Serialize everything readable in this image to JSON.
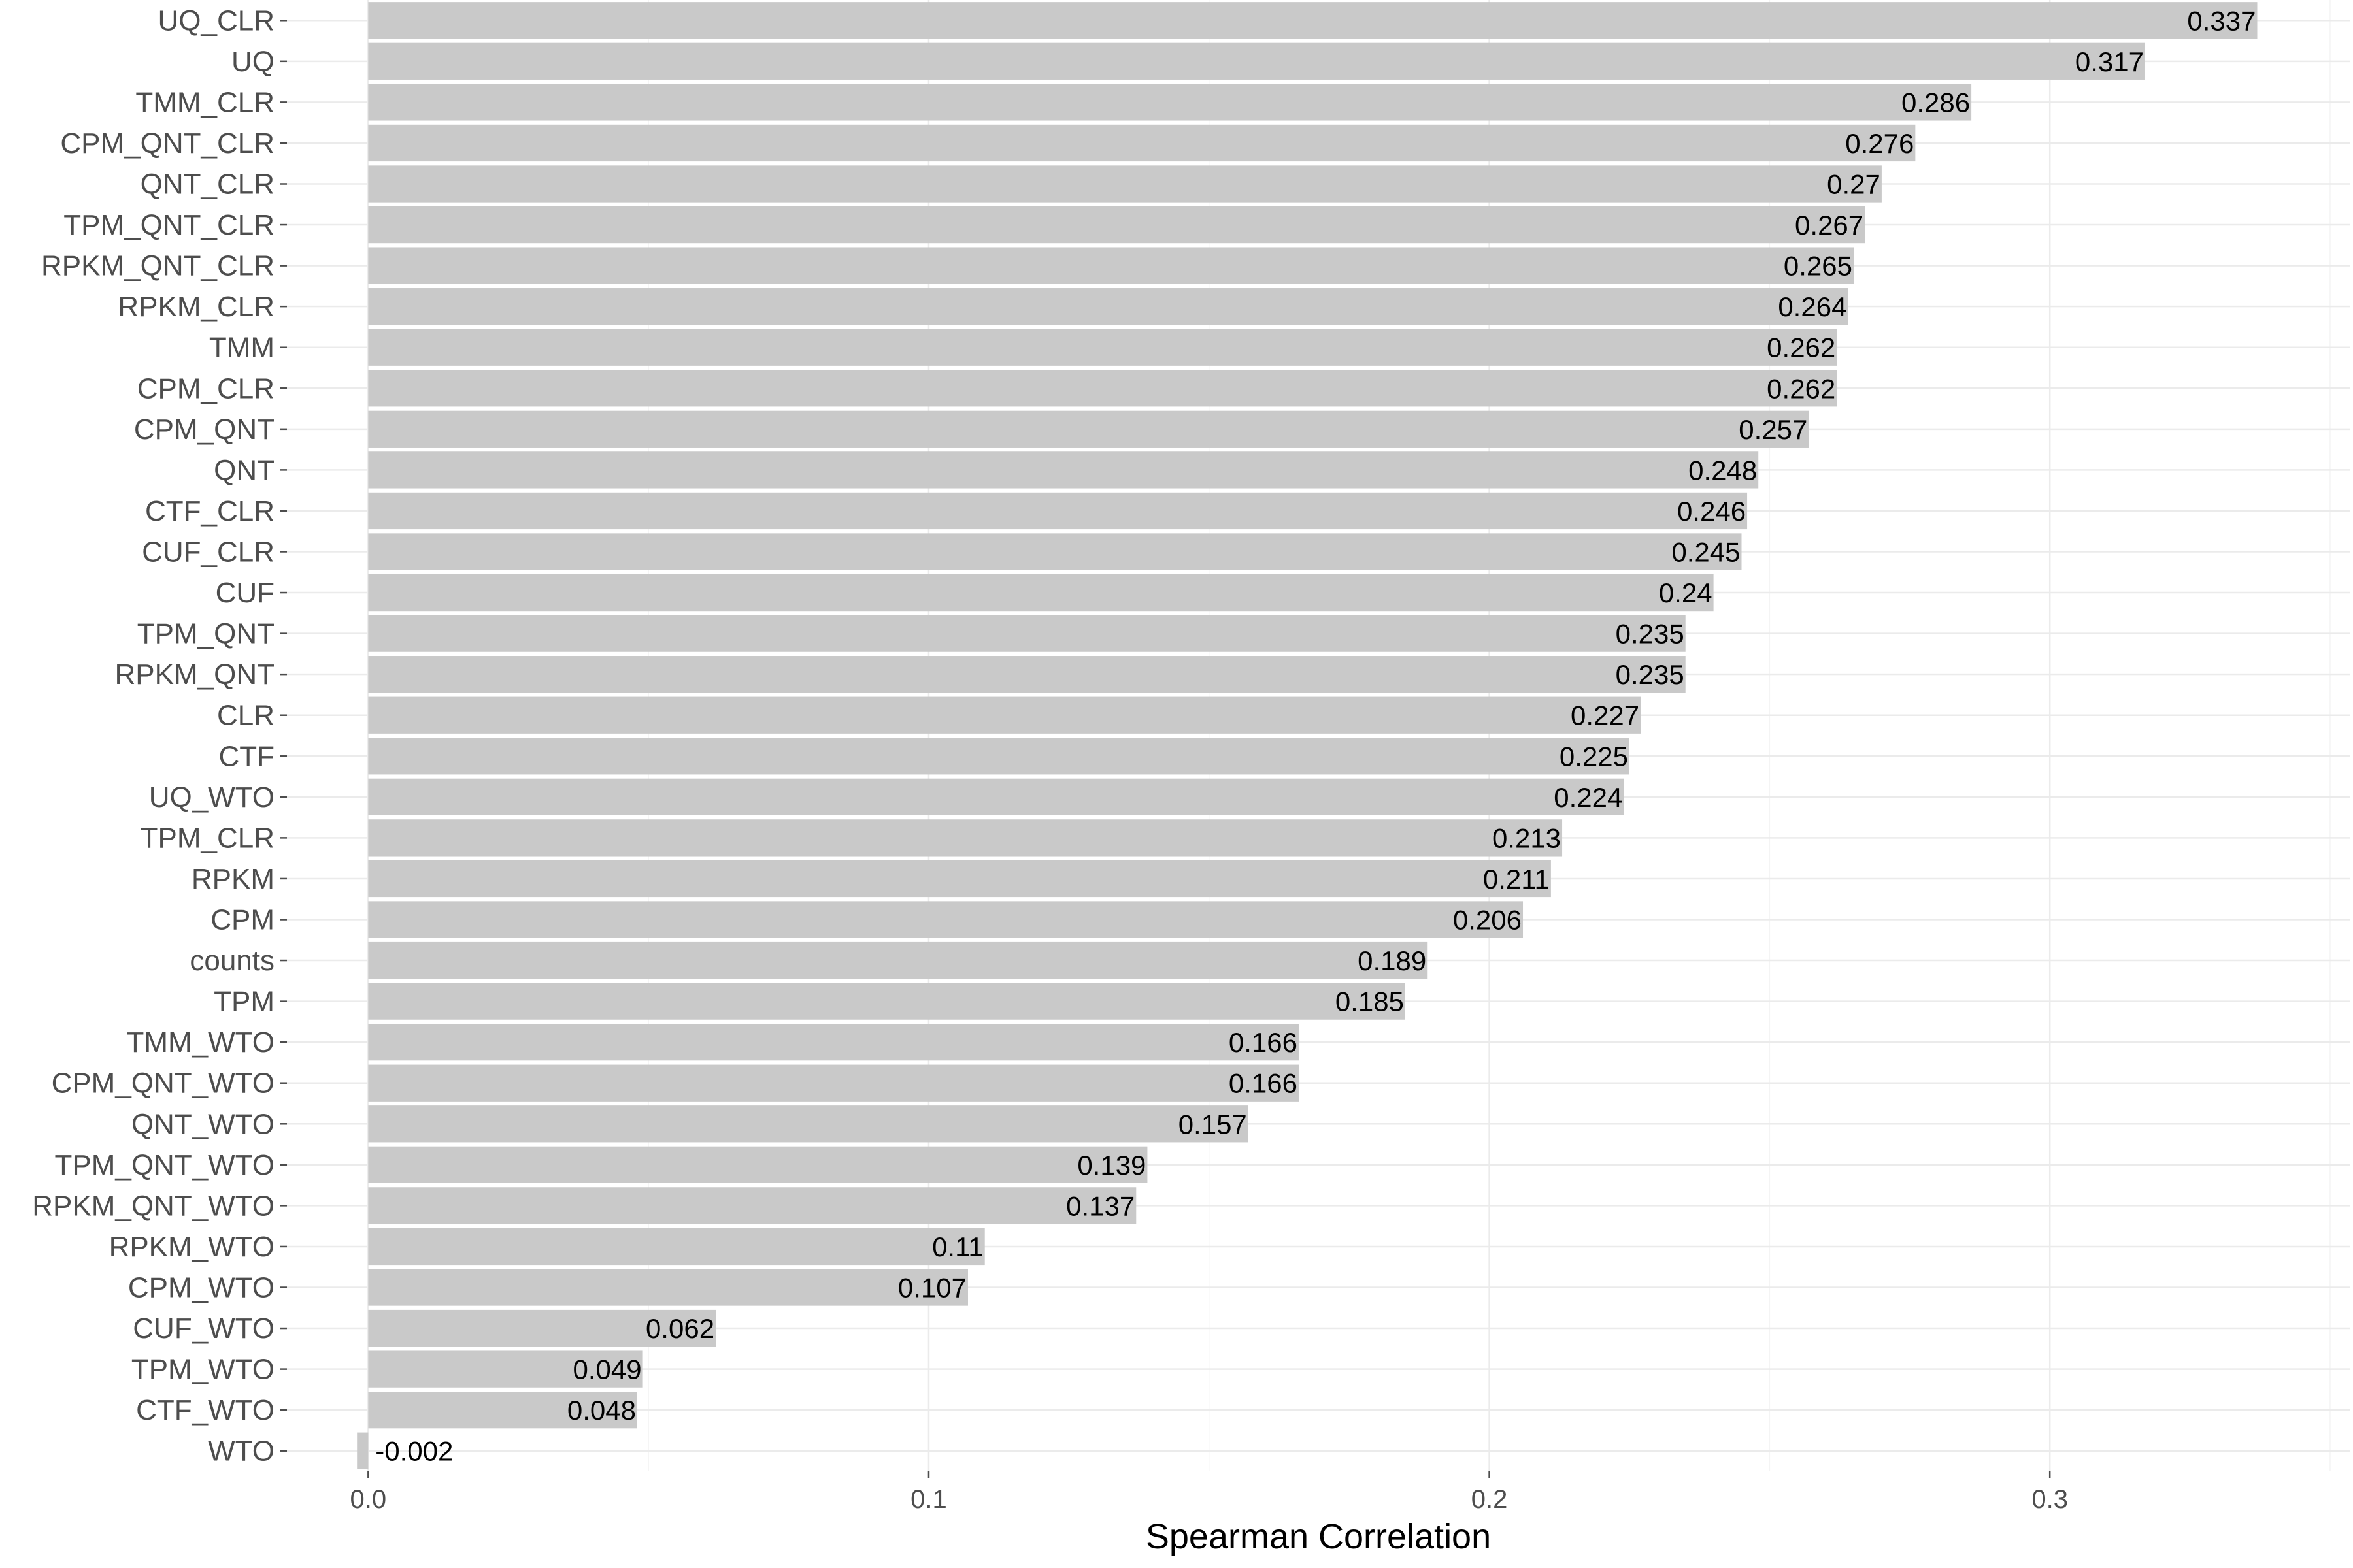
{
  "chart_data": {
    "type": "bar",
    "orientation": "horizontal",
    "title": "",
    "xlabel": "Spearman Correlation",
    "ylabel": "",
    "xlim": [
      -0.0145,
      0.3535
    ],
    "x_ticks": [
      0.0,
      0.1,
      0.2,
      0.3
    ],
    "x_tick_labels": [
      "0.0",
      "0.1",
      "0.2",
      "0.3"
    ],
    "grid": true,
    "legend": "none",
    "bar_color": "#c9c9c9",
    "categories": [
      "UQ_CLR",
      "UQ",
      "TMM_CLR",
      "CPM_QNT_CLR",
      "QNT_CLR",
      "TPM_QNT_CLR",
      "RPKM_QNT_CLR",
      "RPKM_CLR",
      "TMM",
      "CPM_CLR",
      "CPM_QNT",
      "QNT",
      "CTF_CLR",
      "CUF_CLR",
      "CUF",
      "TPM_QNT",
      "RPKM_QNT",
      "CLR",
      "CTF",
      "UQ_WTO",
      "TPM_CLR",
      "RPKM",
      "CPM",
      "counts",
      "TPM",
      "TMM_WTO",
      "CPM_QNT_WTO",
      "QNT_WTO",
      "TPM_QNT_WTO",
      "RPKM_QNT_WTO",
      "RPKM_WTO",
      "CPM_WTO",
      "CUF_WTO",
      "TPM_WTO",
      "CTF_WTO",
      "WTO"
    ],
    "values": [
      0.337,
      0.317,
      0.286,
      0.276,
      0.27,
      0.267,
      0.265,
      0.264,
      0.262,
      0.262,
      0.257,
      0.248,
      0.246,
      0.245,
      0.24,
      0.235,
      0.235,
      0.227,
      0.225,
      0.224,
      0.213,
      0.211,
      0.206,
      0.189,
      0.185,
      0.166,
      0.166,
      0.157,
      0.139,
      0.137,
      0.11,
      0.107,
      0.062,
      0.049,
      0.048,
      -0.002
    ],
    "value_labels": [
      "0.337",
      "0.317",
      "0.286",
      "0.276",
      "0.27",
      "0.267",
      "0.265",
      "0.264",
      "0.262",
      "0.262",
      "0.257",
      "0.248",
      "0.246",
      "0.245",
      "0.24",
      "0.235",
      "0.235",
      "0.227",
      "0.225",
      "0.224",
      "0.213",
      "0.211",
      "0.206",
      "0.189",
      "0.185",
      "0.166",
      "0.166",
      "0.157",
      "0.139",
      "0.137",
      "0.11",
      "0.107",
      "0.062",
      "0.049",
      "0.048",
      "-0.002"
    ]
  }
}
